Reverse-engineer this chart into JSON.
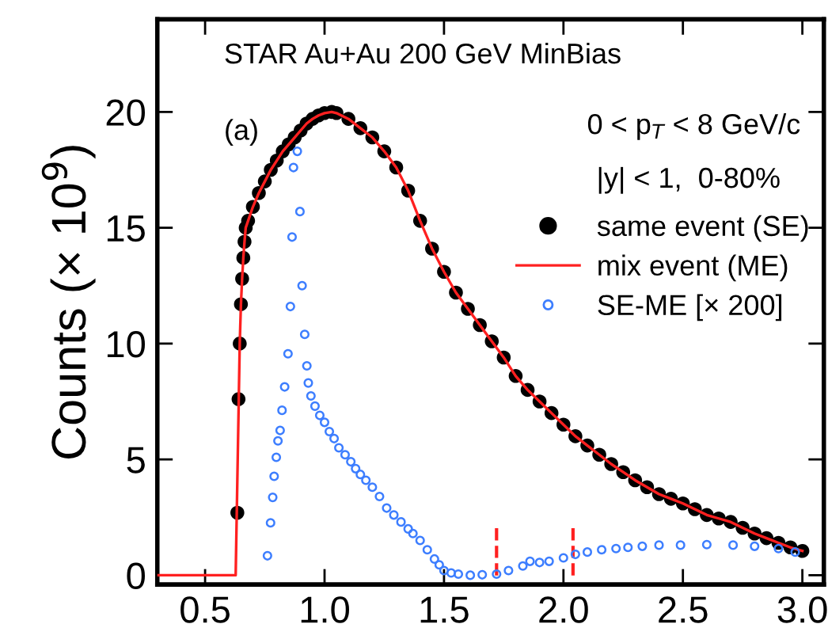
{
  "chart_data": {
    "type": "scatter",
    "ylabel": "Counts (× 10$^{9}$)",
    "annotations": [
      "STAR Au+Au 200 GeV MinBias",
      "(a)",
      "0 < p$_{T}$ < 8 GeV/c",
      "|y| < 1,  0-80%"
    ],
    "xlim": [
      0.3,
      3.09
    ],
    "ylim": [
      -0.4,
      24
    ],
    "xticks": [
      0.5,
      {
        "value": 1,
        "label": "1.0"
      },
      1.5,
      {
        "value": 2,
        "label": "2.0"
      },
      2.5,
      {
        "value": 3,
        "label": "3.0"
      }
    ],
    "yticks": [
      0,
      5,
      10,
      15,
      20
    ],
    "legend": "right",
    "series": [
      {
        "name": "same event (SE)",
        "marker": "circle",
        "color": "#000000",
        "x": [
          0.635,
          0.64,
          0.645,
          0.65,
          0.655,
          0.66,
          0.665,
          0.67,
          0.68,
          0.7,
          0.725,
          0.75,
          0.775,
          0.8,
          0.825,
          0.85,
          0.875,
          0.9,
          0.925,
          0.95,
          0.975,
          1.0,
          1.03,
          1.05,
          1.1,
          1.15,
          1.2,
          1.25,
          1.3,
          1.35,
          1.4,
          1.45,
          1.5,
          1.55,
          1.6,
          1.65,
          1.7,
          1.75,
          1.8,
          1.85,
          1.9,
          1.95,
          2.0,
          2.05,
          2.1,
          2.15,
          2.2,
          2.25,
          2.3,
          2.35,
          2.4,
          2.45,
          2.5,
          2.55,
          2.6,
          2.65,
          2.7,
          2.75,
          2.8,
          2.85,
          2.9,
          2.95,
          3.0
        ],
        "values": [
          2.7,
          7.6,
          10.0,
          11.7,
          12.8,
          13.7,
          14.4,
          15.0,
          15.3,
          15.9,
          16.5,
          17.0,
          17.5,
          17.9,
          18.3,
          18.6,
          18.9,
          19.2,
          19.5,
          19.7,
          19.85,
          19.95,
          20.0,
          19.95,
          19.7,
          19.3,
          18.9,
          18.3,
          17.6,
          16.6,
          15.3,
          14.1,
          13.1,
          12.2,
          11.5,
          10.8,
          10.1,
          9.4,
          8.6,
          8.0,
          7.5,
          7.0,
          6.5,
          6.0,
          5.6,
          5.2,
          4.8,
          4.45,
          4.1,
          3.8,
          3.5,
          3.3,
          3.1,
          2.85,
          2.6,
          2.45,
          2.3,
          2.05,
          1.8,
          1.6,
          1.4,
          1.2,
          1.05
        ]
      },
      {
        "name": "mix event (ME)",
        "type": "line",
        "marker": "none",
        "color": "#ff2020",
        "x": [
          0.3,
          0.628,
          0.645,
          0.65,
          0.655,
          0.66,
          0.665,
          0.67,
          0.68,
          0.7,
          0.725,
          0.75,
          0.775,
          0.8,
          0.825,
          0.85,
          0.875,
          0.9,
          0.925,
          0.95,
          0.975,
          1.0,
          1.03,
          1.05,
          1.1,
          1.15,
          1.2,
          1.25,
          1.3,
          1.35,
          1.4,
          1.45,
          1.5,
          1.55,
          1.6,
          1.65,
          1.7,
          1.75,
          1.8,
          1.85,
          1.9,
          1.95,
          2.0,
          2.05,
          2.1,
          2.15,
          2.2,
          2.25,
          2.3,
          2.35,
          2.4,
          2.45,
          2.5,
          2.55,
          2.6,
          2.65,
          2.7,
          2.75,
          2.8,
          2.85,
          2.9,
          2.95,
          3.0
        ],
        "values": [
          0,
          0,
          10.0,
          11.7,
          12.8,
          13.7,
          14.4,
          15.0,
          15.3,
          15.9,
          16.5,
          17.0,
          17.5,
          17.9,
          18.3,
          18.6,
          18.9,
          19.2,
          19.5,
          19.7,
          19.85,
          19.95,
          20.0,
          19.95,
          19.7,
          19.3,
          18.9,
          18.3,
          17.6,
          16.6,
          15.3,
          14.1,
          13.1,
          12.2,
          11.5,
          10.8,
          10.1,
          9.4,
          8.6,
          8.0,
          7.5,
          7.0,
          6.5,
          6.0,
          5.6,
          5.2,
          4.8,
          4.45,
          4.1,
          3.8,
          3.5,
          3.3,
          3.1,
          2.85,
          2.6,
          2.45,
          2.3,
          2.05,
          1.8,
          1.6,
          1.4,
          1.2,
          1.05
        ]
      },
      {
        "name": "SE-ME [× 200]",
        "marker": "open circle",
        "color": "#3d7eff",
        "x": [
          0.761,
          0.774,
          0.783,
          0.789,
          0.798,
          0.805,
          0.814,
          0.822,
          0.833,
          0.847,
          0.857,
          0.864,
          0.87,
          0.886,
          0.897,
          0.906,
          0.917,
          0.926,
          0.932,
          0.943,
          0.96,
          0.98,
          1.0,
          1.02,
          1.04,
          1.06,
          1.086,
          1.11,
          1.13,
          1.15,
          1.173,
          1.2,
          1.23,
          1.26,
          1.29,
          1.32,
          1.35,
          1.37,
          1.4,
          1.43,
          1.46,
          1.48,
          1.5,
          1.53,
          1.56,
          1.61,
          1.66,
          1.72,
          1.77,
          1.83,
          1.86,
          1.9,
          1.94,
          2.0,
          2.05,
          2.1,
          2.16,
          2.22,
          2.27,
          2.33,
          2.4,
          2.49,
          2.6,
          2.71,
          2.8,
          2.9,
          2.97
        ],
        "values": [
          0.84,
          2.26,
          3.36,
          4.27,
          5.09,
          5.8,
          6.25,
          7.12,
          8.13,
          9.56,
          11.6,
          14.6,
          17.6,
          18.3,
          15.7,
          12.5,
          10.4,
          9.04,
          8.3,
          7.74,
          7.3,
          6.9,
          6.6,
          6.2,
          5.9,
          5.5,
          5.2,
          4.9,
          4.6,
          4.35,
          4.1,
          3.8,
          3.4,
          2.9,
          2.6,
          2.3,
          2.0,
          1.8,
          1.5,
          1.1,
          0.7,
          0.45,
          0.2,
          0.1,
          0.05,
          0.0,
          0.02,
          0.05,
          0.2,
          0.4,
          0.6,
          0.55,
          0.6,
          0.75,
          0.9,
          1.0,
          1.1,
          1.15,
          1.2,
          1.25,
          1.3,
          1.3,
          1.32,
          1.3,
          1.25,
          1.15,
          1.0
        ]
      }
    ],
    "ref_lines": [
      {
        "axis": "x",
        "value": 1.72,
        "color": "#ff2020",
        "line_style": "dashed"
      },
      {
        "axis": "x",
        "value": 2.04,
        "color": "#ff2020",
        "line_style": "dashed"
      }
    ]
  }
}
